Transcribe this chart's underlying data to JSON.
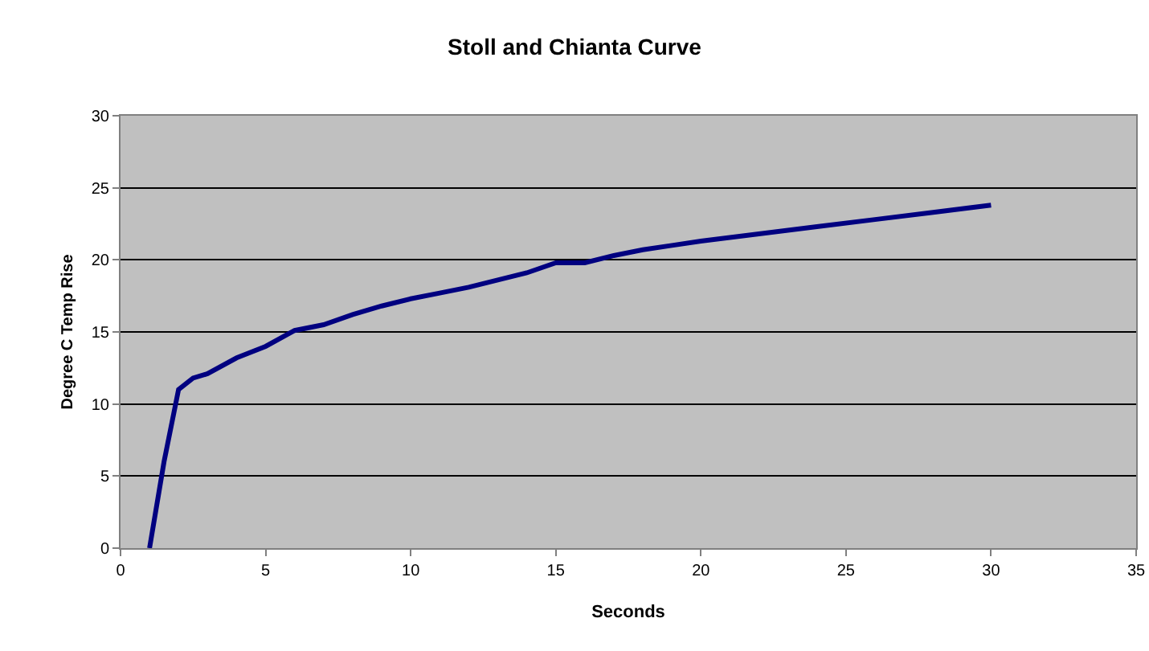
{
  "chart_data": {
    "type": "line",
    "title": "Stoll and Chianta Curve",
    "xlabel": "Seconds",
    "ylabel": "Degree C Temp Rise",
    "x": [
      1,
      1.5,
      2,
      2.5,
      3,
      4,
      5,
      6,
      7,
      8,
      9,
      10,
      11,
      12,
      13,
      14,
      15,
      16,
      17,
      18,
      19,
      20,
      22,
      24,
      26,
      28,
      30
    ],
    "series": [
      {
        "color": "#000080",
        "values": [
          0,
          6,
          11,
          11.8,
          12.1,
          13.2,
          14,
          15.1,
          15.5,
          16.2,
          16.8,
          17.3,
          17.7,
          18.1,
          18.6,
          19.1,
          19.8,
          19.8,
          20.3,
          20.7,
          21,
          21.3,
          21.8,
          22.3,
          22.8,
          23.3,
          23.8
        ]
      }
    ],
    "xlim": [
      0,
      35
    ],
    "xticks": [
      0,
      5,
      10,
      15,
      20,
      25,
      30,
      35
    ],
    "ylim": [
      0,
      30
    ],
    "yticks": [
      0,
      5,
      10,
      15,
      20,
      25,
      30
    ],
    "grid": "y",
    "legend": false,
    "marker": "none",
    "line_style": "solid"
  }
}
